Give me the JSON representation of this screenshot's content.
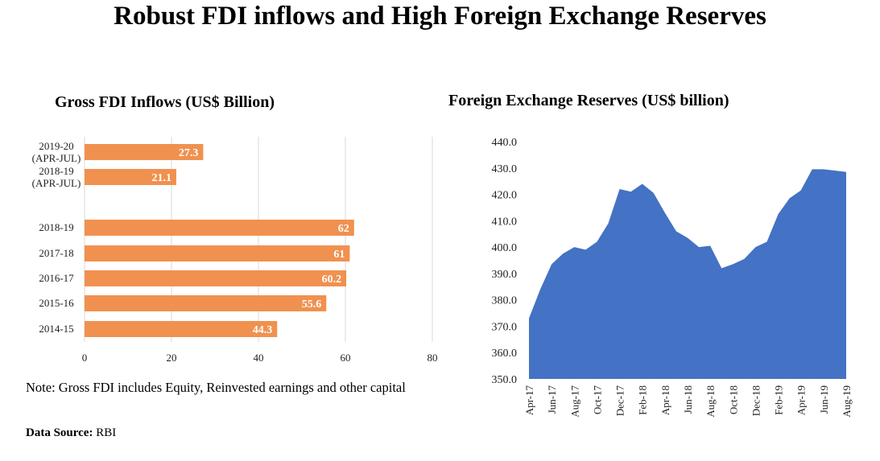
{
  "page": {
    "title": "Robust FDI inflows and High Foreign Exchange Reserves",
    "note": "Note: Gross FDI includes Equity, Reinvested earnings and other capital",
    "source_label": "Data Source:",
    "source_value": " RBI"
  },
  "colors": {
    "fdi_bar": "#f0914f",
    "fx_area": "#4472c4",
    "gridline": "#d9d9d9"
  },
  "chart_data": [
    {
      "type": "bar",
      "orientation": "horizontal",
      "title": "Gross FDI Inflows (US$ Billion)",
      "categories": [
        [
          "2019-20",
          "(APR-JUL)"
        ],
        [
          "2018-19",
          "(APR-JUL)"
        ],
        [
          "2018-19"
        ],
        [
          "2017-18"
        ],
        [
          "2016-17"
        ],
        [
          "2015-16"
        ],
        [
          "2014-15"
        ]
      ],
      "values": [
        27.3,
        21.1,
        62,
        61,
        60.2,
        55.6,
        44.3
      ],
      "value_labels": [
        "27.3",
        "21.1",
        "62",
        "61",
        "60.2",
        "55.6",
        "44.3"
      ],
      "xlim": [
        0,
        80
      ],
      "xticks": [
        0,
        20,
        40,
        60,
        80
      ],
      "grid": true
    },
    {
      "type": "area",
      "title": "Foreign Exchange Reserves (US$ billion)",
      "x": [
        "Apr-17",
        "May-17",
        "Jun-17",
        "Jul-17",
        "Aug-17",
        "Sep-17",
        "Oct-17",
        "Nov-17",
        "Dec-17",
        "Jan-18",
        "Feb-18",
        "Mar-18",
        "Apr-18",
        "May-18",
        "Jun-18",
        "Jul-18",
        "Aug-18",
        "Sep-18",
        "Oct-18",
        "Nov-18",
        "Dec-18",
        "Jan-19",
        "Feb-19",
        "Mar-19",
        "Apr-19",
        "May-19",
        "Jun-19",
        "Jul-19",
        "Aug-19"
      ],
      "xtick_labels": [
        "Apr-17",
        "Jun-17",
        "Aug-17",
        "Oct-17",
        "Dec-17",
        "Feb-18",
        "Apr-18",
        "Jun-18",
        "Aug-18",
        "Oct-18",
        "Dec-18",
        "Feb-19",
        "Apr-19",
        "Jun-19",
        "Aug-19"
      ],
      "values": [
        373.0,
        384.0,
        393.5,
        397.5,
        400.0,
        399.0,
        402.0,
        409.0,
        422.0,
        421.0,
        424.0,
        420.5,
        413.0,
        406.0,
        403.5,
        400.0,
        400.5,
        392.0,
        393.5,
        395.5,
        400.0,
        402.0,
        412.5,
        418.5,
        421.5,
        429.5,
        429.5,
        429.0,
        428.5
      ],
      "ylim": [
        350,
        440
      ],
      "yticks": [
        "350.0",
        "360.0",
        "370.0",
        "380.0",
        "390.0",
        "400.0",
        "410.0",
        "420.0",
        "430.0",
        "440.0"
      ],
      "grid": false
    }
  ]
}
